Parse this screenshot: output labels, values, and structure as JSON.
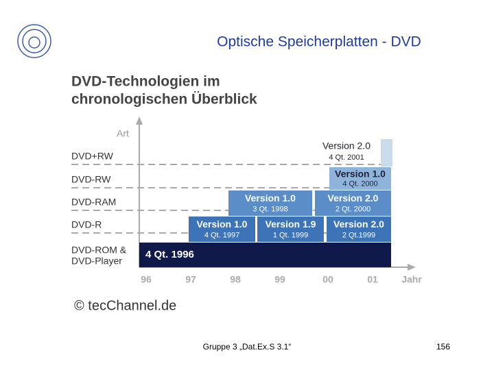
{
  "header": {
    "title": "Optische Speicherplatten - DVD"
  },
  "figure": {
    "title_lines": [
      "DVD-Technologien im",
      "chronologischen Überblick"
    ],
    "y_axis_label": "Art",
    "rows": [
      "DVD+RW",
      "DVD-RW",
      "DVD-RAM",
      "DVD-R",
      "DVD-ROM &",
      "DVD-Player"
    ],
    "blocks": [
      {
        "version": "4 Qt. 1996"
      },
      {
        "version": "Version 1.0",
        "date": "4 Qt. 1997"
      },
      {
        "version": "Version 1.9",
        "date": "1 Qt. 1999"
      },
      {
        "version": "Version 2.0",
        "date": "2 Qt.1999"
      },
      {
        "version": "Version 1.0",
        "date": "3 Qt. 1998"
      },
      {
        "version": "Version 2.0",
        "date": "2 Qt. 2000"
      },
      {
        "version": "Version 1.0",
        "date": "4 Qt. 2000"
      },
      {
        "version": "Version 2.0",
        "date": "4 Qt. 2001"
      }
    ],
    "x_axis_labels": [
      "96",
      "97",
      "98",
      "99",
      "00",
      "01"
    ],
    "x_axis_title": "Jahr",
    "credit": "© tecChannel.de"
  },
  "footer": {
    "text": "Gruppe 3 „Dat.Ex.S 3.1“",
    "page": "156"
  }
}
